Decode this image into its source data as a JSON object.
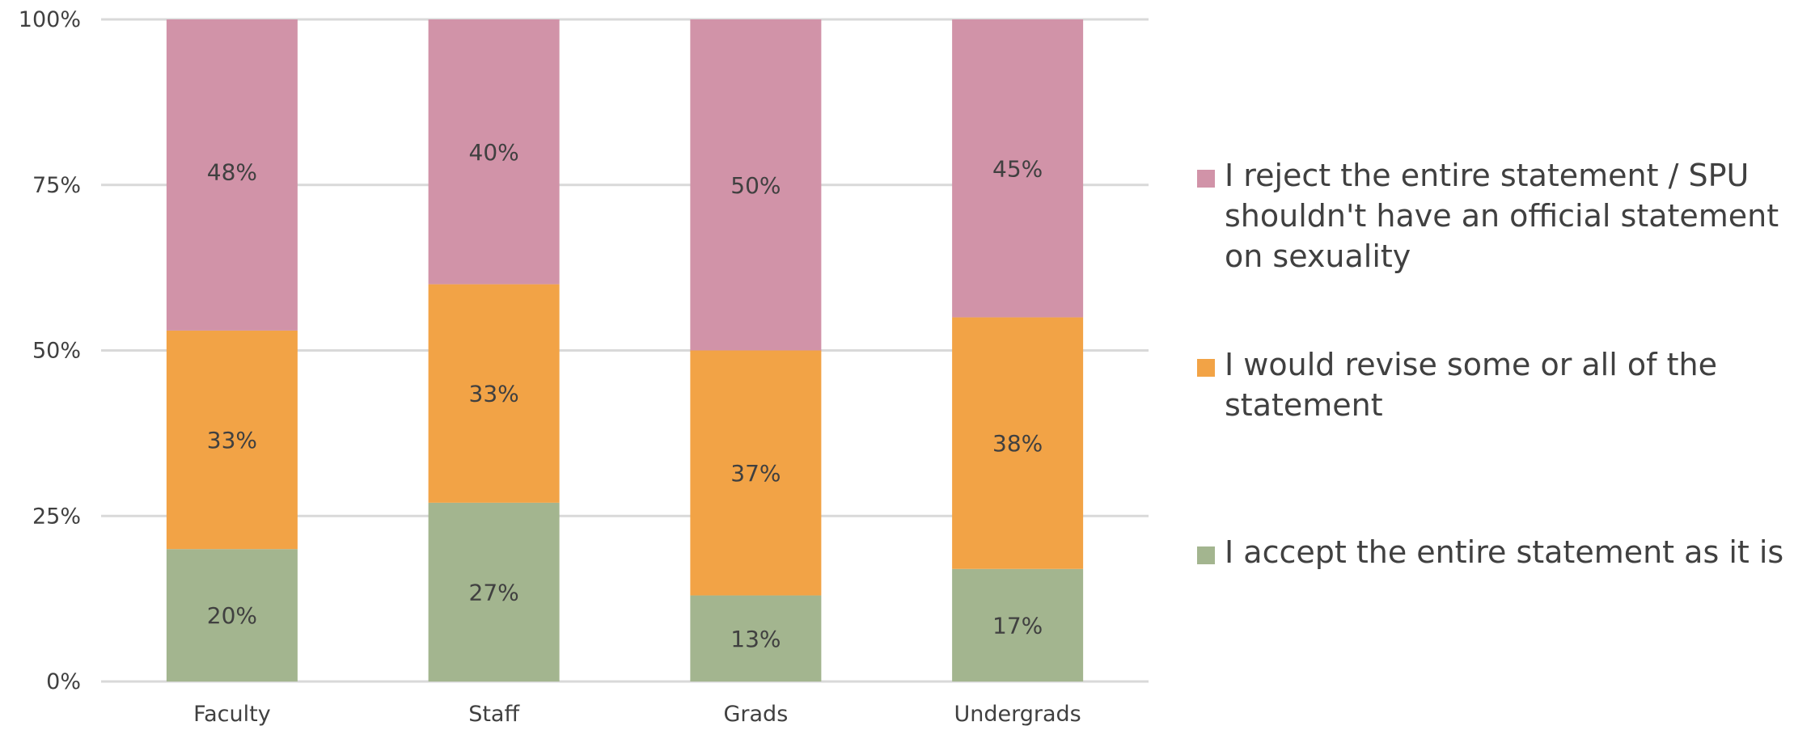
{
  "chart_data": {
    "type": "bar",
    "stacked": true,
    "percent": true,
    "categories": [
      "Faculty",
      "Staff",
      "Grads",
      "Undergrads"
    ],
    "series": [
      {
        "name": "I accept the entire statement as it is",
        "values": [
          20,
          27,
          13,
          17
        ],
        "labels": [
          "20%",
          "27%",
          "13%",
          "17%"
        ],
        "color": "#a3b58f"
      },
      {
        "name": "I would revise some or all of the statement",
        "values": [
          33,
          33,
          37,
          38
        ],
        "labels": [
          "33%",
          "33%",
          "37%",
          "38%"
        ],
        "color": "#f2a346"
      },
      {
        "name": "I reject the entire statement / SPU shouldn't have an official statement on sexuality",
        "values": [
          48,
          40,
          50,
          45
        ],
        "labels": [
          "48%",
          "40%",
          "50%",
          "45%"
        ],
        "color": "#d193a8"
      }
    ],
    "y_ticks": [
      "0%",
      "25%",
      "50%",
      "75%",
      "100%"
    ],
    "ylim": [
      0,
      100
    ],
    "grid": true,
    "legend_position": "right",
    "title": "",
    "xlabel": "",
    "ylabel": ""
  }
}
